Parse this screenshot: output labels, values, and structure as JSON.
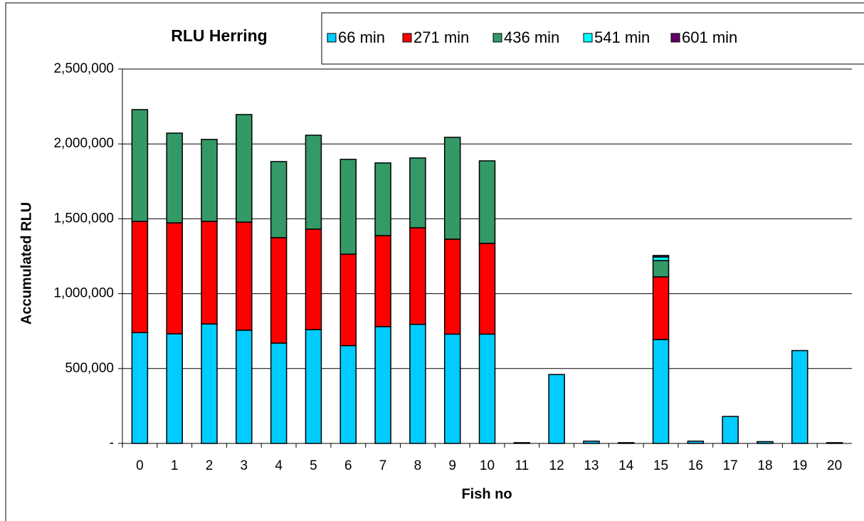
{
  "chart_data": {
    "type": "stacked_bar",
    "title": "RLU Herring",
    "x_label": "Fish no",
    "y_label": "Accumulated RLU",
    "categories": [
      "0",
      "1",
      "2",
      "3",
      "4",
      "5",
      "6",
      "7",
      "8",
      "9",
      "10",
      "11",
      "12",
      "13",
      "14",
      "15",
      "16",
      "17",
      "18",
      "19",
      "20"
    ],
    "series": [
      {
        "name": "66 min",
        "color": "#00ccff",
        "values": [
          740000,
          732000,
          798000,
          756000,
          670000,
          760000,
          653000,
          780000,
          795000,
          730000,
          730000,
          5000,
          460000,
          15000,
          5000,
          694000,
          15000,
          180000,
          12000,
          620000,
          5000
        ]
      },
      {
        "name": "271 min",
        "color": "#ff0000",
        "values": [
          743000,
          741000,
          685000,
          722000,
          704000,
          671000,
          611000,
          608000,
          645000,
          634000,
          606000,
          0,
          0,
          0,
          0,
          418000,
          0,
          0,
          0,
          0,
          0
        ]
      },
      {
        "name": "436 min",
        "color": "#339966",
        "values": [
          746000,
          599000,
          547000,
          718000,
          508000,
          627000,
          633000,
          485000,
          466000,
          680000,
          551000,
          0,
          0,
          0,
          0,
          109000,
          0,
          0,
          0,
          0,
          0
        ]
      },
      {
        "name": "541 min",
        "color": "#00ffff",
        "values": [
          0,
          0,
          0,
          0,
          0,
          0,
          0,
          0,
          0,
          0,
          0,
          0,
          0,
          0,
          0,
          24000,
          0,
          0,
          0,
          0,
          0
        ]
      },
      {
        "name": "601 min",
        "color": "#660066",
        "values": [
          0,
          0,
          0,
          0,
          0,
          0,
          0,
          0,
          0,
          0,
          0,
          0,
          0,
          0,
          0,
          10000,
          0,
          0,
          0,
          0,
          0
        ]
      }
    ],
    "ylim": [
      0,
      2500000
    ],
    "yticks": [
      {
        "value": 0,
        "label": "-"
      },
      {
        "value": 500000,
        "label": "500,000"
      },
      {
        "value": 1000000,
        "label": "1,000,000"
      },
      {
        "value": 1500000,
        "label": "1,500,000"
      },
      {
        "value": 2000000,
        "label": "2,000,000"
      },
      {
        "value": 2500000,
        "label": "2,500,000"
      }
    ],
    "grid": true,
    "legend": "top-right"
  }
}
